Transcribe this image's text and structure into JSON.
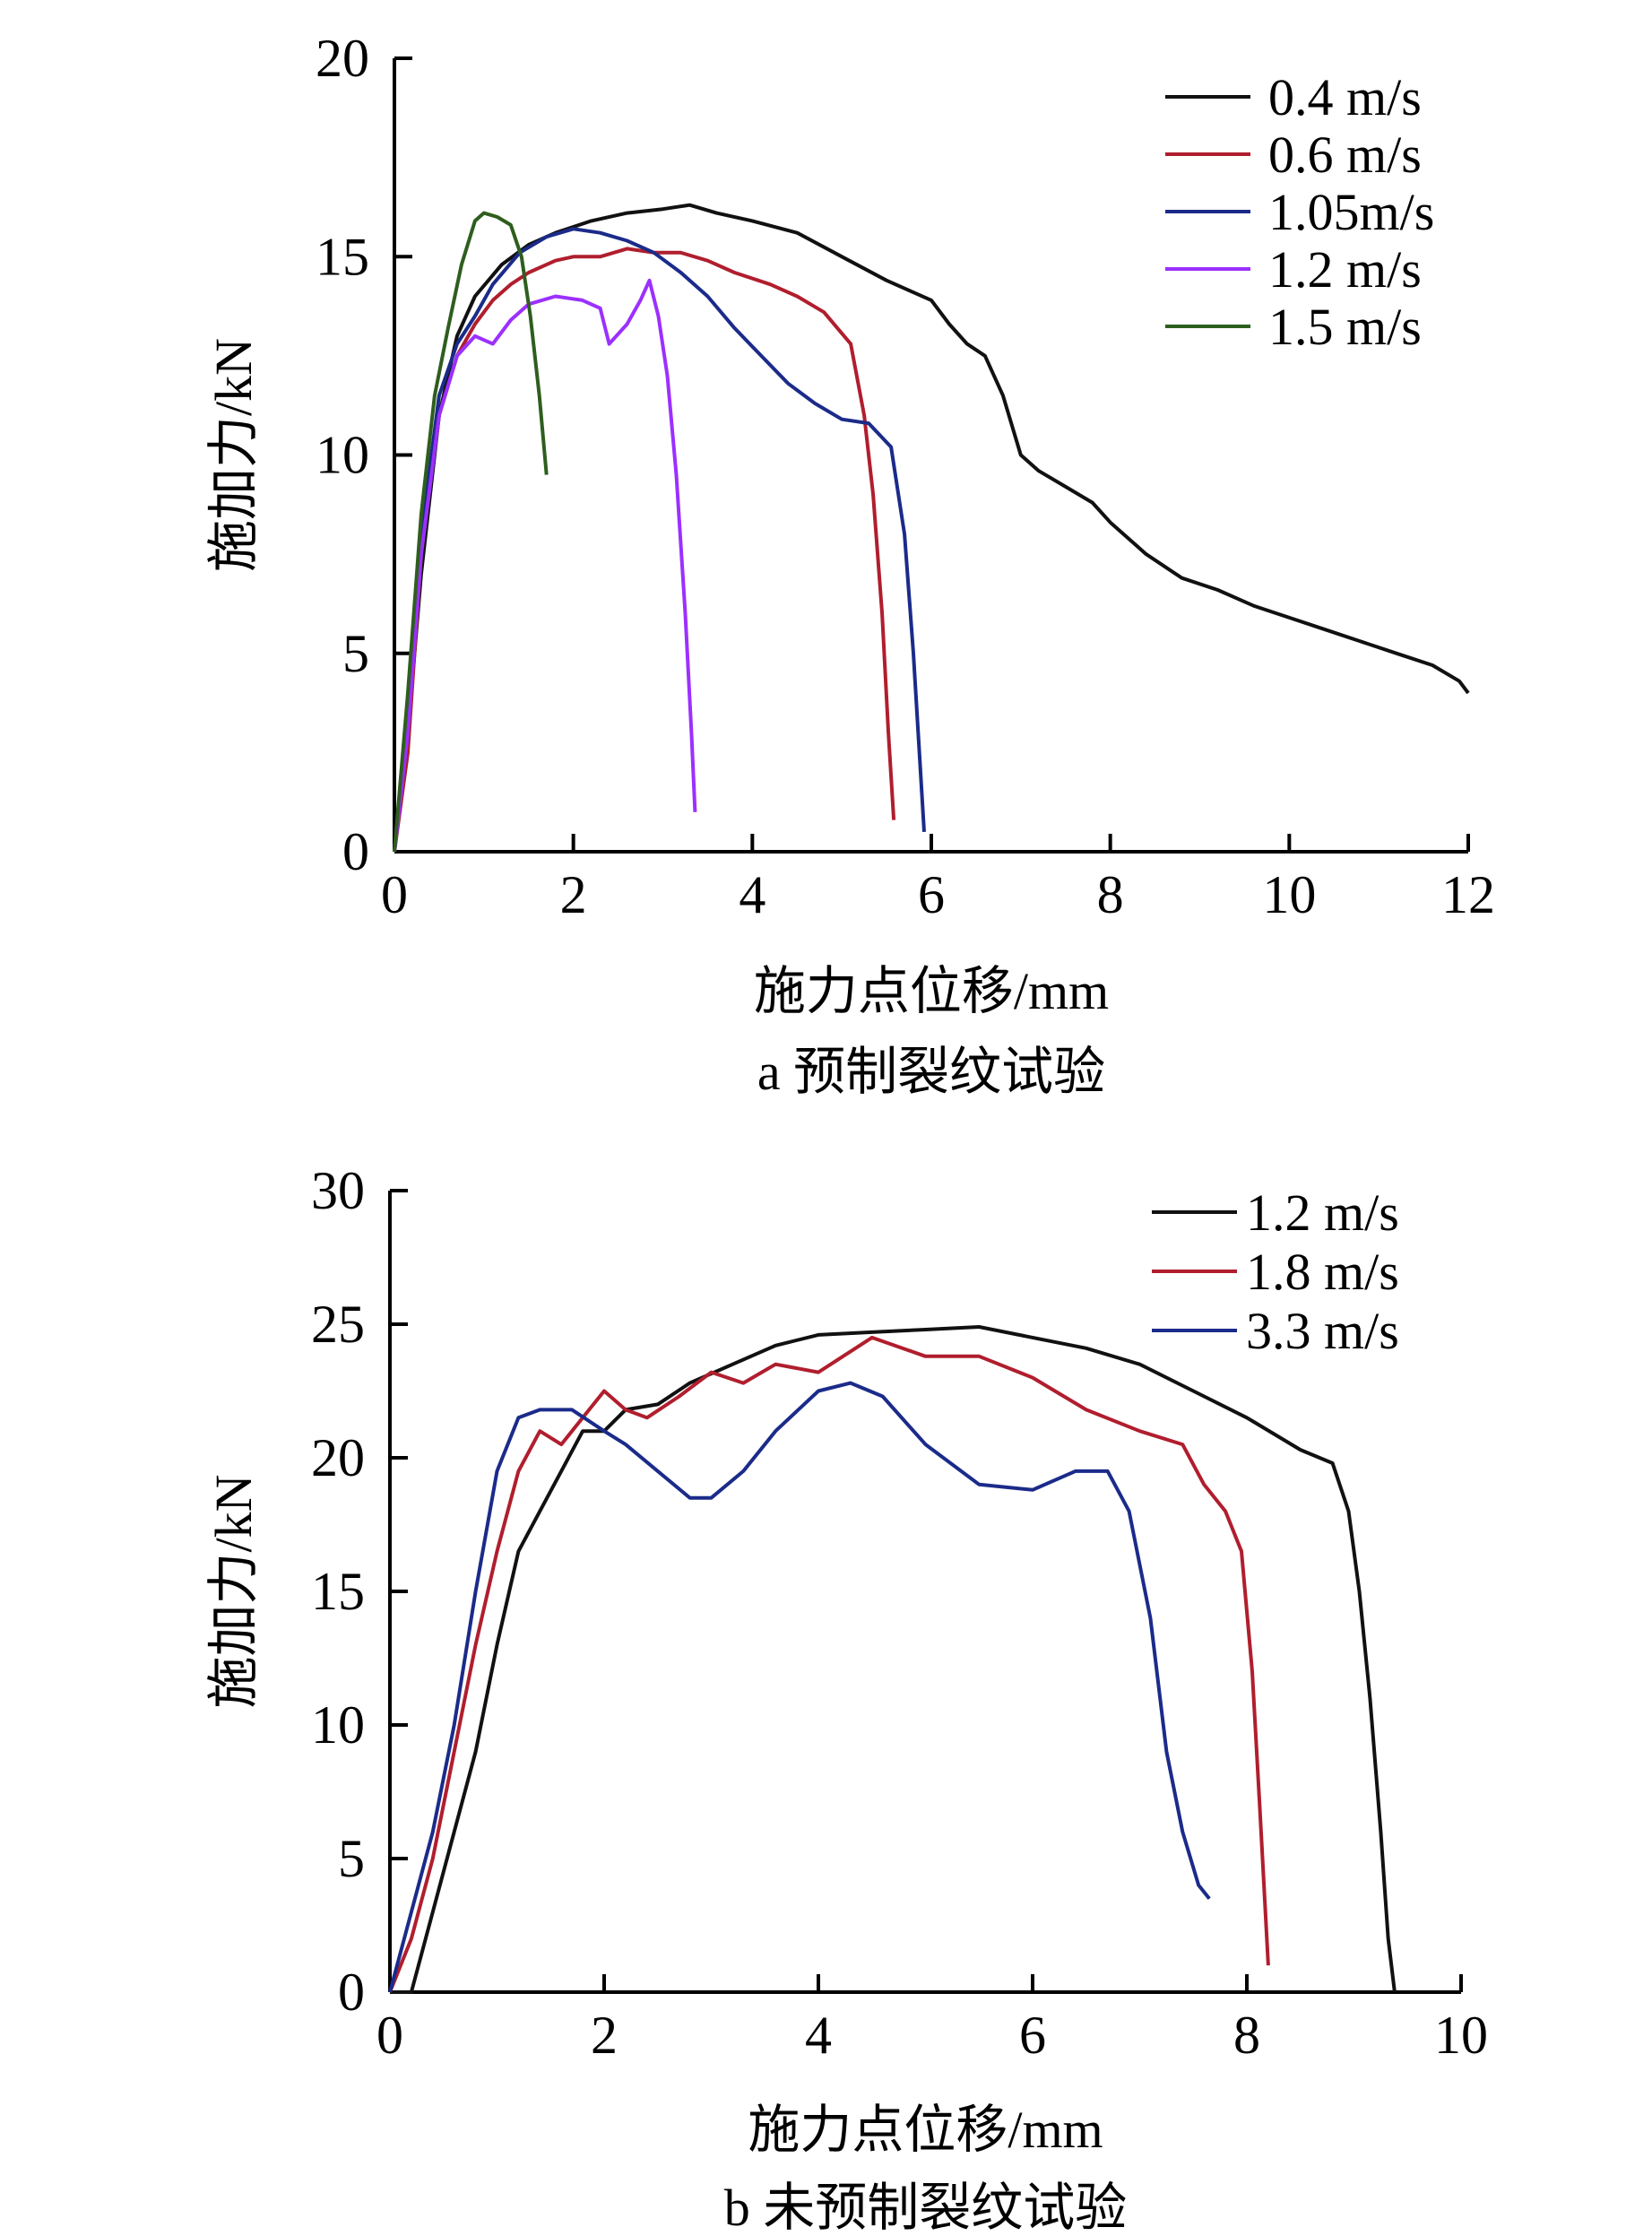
{
  "chart_data": [
    {
      "type": "line",
      "xlabel": "施力点位移/mm",
      "ylabel": "施加力/kN",
      "caption": "a  预制裂纹试验",
      "xlim": [
        0,
        12
      ],
      "ylim": [
        0,
        20
      ],
      "x_ticks": [
        "0",
        "2",
        "4",
        "6",
        "8",
        "10",
        "12"
      ],
      "y_ticks": [
        "0",
        "5",
        "10",
        "15",
        "20"
      ],
      "legend_position": "top-right",
      "series": [
        {
          "name": "0.4 m/s",
          "color": "#111111",
          "points": [
            [
              0,
              0
            ],
            [
              0.15,
              3
            ],
            [
              0.3,
              7
            ],
            [
              0.5,
              11
            ],
            [
              0.7,
              13
            ],
            [
              0.9,
              14
            ],
            [
              1.2,
              14.8
            ],
            [
              1.5,
              15.3
            ],
            [
              1.8,
              15.6
            ],
            [
              2.2,
              15.9
            ],
            [
              2.6,
              16.1
            ],
            [
              3.0,
              16.2
            ],
            [
              3.3,
              16.3
            ],
            [
              3.6,
              16.1
            ],
            [
              4.0,
              15.9
            ],
            [
              4.5,
              15.6
            ],
            [
              5.0,
              15.0
            ],
            [
              5.5,
              14.4
            ],
            [
              5.8,
              14.1
            ],
            [
              6.0,
              13.9
            ],
            [
              6.2,
              13.3
            ],
            [
              6.4,
              12.8
            ],
            [
              6.6,
              12.5
            ],
            [
              6.8,
              11.5
            ],
            [
              7.0,
              10.0
            ],
            [
              7.2,
              9.6
            ],
            [
              7.5,
              9.2
            ],
            [
              7.8,
              8.8
            ],
            [
              8.0,
              8.3
            ],
            [
              8.4,
              7.5
            ],
            [
              8.8,
              6.9
            ],
            [
              9.2,
              6.6
            ],
            [
              9.6,
              6.2
            ],
            [
              10.0,
              5.9
            ],
            [
              10.4,
              5.6
            ],
            [
              10.8,
              5.3
            ],
            [
              11.2,
              5.0
            ],
            [
              11.6,
              4.7
            ],
            [
              11.9,
              4.3
            ],
            [
              12.0,
              4.0
            ]
          ]
        },
        {
          "name": "0.6 m/s",
          "color": "#b01e2e",
          "points": [
            [
              0,
              0
            ],
            [
              0.15,
              2.5
            ],
            [
              0.3,
              7.5
            ],
            [
              0.5,
              11
            ],
            [
              0.7,
              12.5
            ],
            [
              0.9,
              13.3
            ],
            [
              1.1,
              13.9
            ],
            [
              1.3,
              14.3
            ],
            [
              1.5,
              14.6
            ],
            [
              1.8,
              14.9
            ],
            [
              2.0,
              15.0
            ],
            [
              2.3,
              15.0
            ],
            [
              2.6,
              15.2
            ],
            [
              2.9,
              15.1
            ],
            [
              3.2,
              15.1
            ],
            [
              3.5,
              14.9
            ],
            [
              3.8,
              14.6
            ],
            [
              4.2,
              14.3
            ],
            [
              4.5,
              14.0
            ],
            [
              4.8,
              13.6
            ],
            [
              5.1,
              12.8
            ],
            [
              5.25,
              11.0
            ],
            [
              5.35,
              9.0
            ],
            [
              5.45,
              6.0
            ],
            [
              5.52,
              3.0
            ],
            [
              5.58,
              0.8
            ]
          ]
        },
        {
          "name": "1.05m/s",
          "color": "#1b2b8a",
          "points": [
            [
              0,
              0
            ],
            [
              0.15,
              3
            ],
            [
              0.3,
              8
            ],
            [
              0.5,
              11.5
            ],
            [
              0.7,
              12.8
            ],
            [
              0.9,
              13.5
            ],
            [
              1.1,
              14.3
            ],
            [
              1.4,
              15.1
            ],
            [
              1.7,
              15.5
            ],
            [
              2.0,
              15.7
            ],
            [
              2.3,
              15.6
            ],
            [
              2.6,
              15.4
            ],
            [
              2.9,
              15.1
            ],
            [
              3.2,
              14.6
            ],
            [
              3.5,
              14.0
            ],
            [
              3.8,
              13.2
            ],
            [
              4.1,
              12.5
            ],
            [
              4.4,
              11.8
            ],
            [
              4.7,
              11.3
            ],
            [
              5.0,
              10.9
            ],
            [
              5.3,
              10.8
            ],
            [
              5.55,
              10.2
            ],
            [
              5.7,
              8.0
            ],
            [
              5.8,
              5.0
            ],
            [
              5.88,
              2.0
            ],
            [
              5.92,
              0.5
            ]
          ]
        },
        {
          "name": "1.2 m/s",
          "color": "#9b30ff",
          "points": [
            [
              0,
              0
            ],
            [
              0.15,
              3
            ],
            [
              0.3,
              7.5
            ],
            [
              0.5,
              11
            ],
            [
              0.7,
              12.5
            ],
            [
              0.9,
              13.0
            ],
            [
              1.1,
              12.8
            ],
            [
              1.3,
              13.4
            ],
            [
              1.5,
              13.8
            ],
            [
              1.8,
              14.0
            ],
            [
              2.1,
              13.9
            ],
            [
              2.3,
              13.7
            ],
            [
              2.4,
              12.8
            ],
            [
              2.6,
              13.3
            ],
            [
              2.75,
              13.9
            ],
            [
              2.85,
              14.4
            ],
            [
              2.95,
              13.5
            ],
            [
              3.05,
              12.0
            ],
            [
              3.15,
              9.5
            ],
            [
              3.25,
              6.0
            ],
            [
              3.32,
              3.0
            ],
            [
              3.36,
              1.0
            ]
          ]
        },
        {
          "name": "1.5 m/s",
          "color": "#2e5e1e",
          "points": [
            [
              0,
              0
            ],
            [
              0.15,
              4
            ],
            [
              0.3,
              8.5
            ],
            [
              0.45,
              11.5
            ],
            [
              0.6,
              13.2
            ],
            [
              0.75,
              14.8
            ],
            [
              0.9,
              15.9
            ],
            [
              1.0,
              16.1
            ],
            [
              1.15,
              16.0
            ],
            [
              1.3,
              15.8
            ],
            [
              1.42,
              15.0
            ],
            [
              1.52,
              13.5
            ],
            [
              1.62,
              11.5
            ],
            [
              1.7,
              9.5
            ]
          ]
        }
      ]
    },
    {
      "type": "line",
      "xlabel": "施力点位移/mm",
      "ylabel": "施加力/kN",
      "caption": "b  未预制裂纹试验",
      "xlim": [
        0,
        10
      ],
      "ylim": [
        0,
        30
      ],
      "x_ticks": [
        "0",
        "2",
        "4",
        "6",
        "8",
        "10"
      ],
      "y_ticks": [
        "0",
        "5",
        "10",
        "15",
        "20",
        "25",
        "30"
      ],
      "legend_position": "top-right",
      "series": [
        {
          "name": "1.2 m/s",
          "color": "#111111",
          "points": [
            [
              0,
              0
            ],
            [
              0.2,
              0
            ],
            [
              0.4,
              3
            ],
            [
              0.6,
              6
            ],
            [
              0.8,
              9
            ],
            [
              1.0,
              13
            ],
            [
              1.2,
              16.5
            ],
            [
              1.4,
              18.0
            ],
            [
              1.6,
              19.5
            ],
            [
              1.8,
              21.0
            ],
            [
              2.0,
              21.0
            ],
            [
              2.2,
              21.8
            ],
            [
              2.5,
              22.0
            ],
            [
              2.8,
              22.8
            ],
            [
              3.2,
              23.5
            ],
            [
              3.6,
              24.2
            ],
            [
              4.0,
              24.6
            ],
            [
              4.5,
              24.7
            ],
            [
              5.0,
              24.8
            ],
            [
              5.5,
              24.9
            ],
            [
              6.0,
              24.5
            ],
            [
              6.5,
              24.1
            ],
            [
              7.0,
              23.5
            ],
            [
              7.5,
              22.5
            ],
            [
              8.0,
              21.5
            ],
            [
              8.5,
              20.3
            ],
            [
              8.8,
              19.8
            ],
            [
              8.95,
              18.0
            ],
            [
              9.05,
              15.0
            ],
            [
              9.15,
              11.0
            ],
            [
              9.25,
              6.0
            ],
            [
              9.32,
              2.0
            ],
            [
              9.38,
              0
            ]
          ]
        },
        {
          "name": "1.8 m/s",
          "color": "#b01e2e",
          "points": [
            [
              0,
              0
            ],
            [
              0.2,
              2
            ],
            [
              0.4,
              5
            ],
            [
              0.6,
              9
            ],
            [
              0.8,
              13
            ],
            [
              1.0,
              16.5
            ],
            [
              1.2,
              19.5
            ],
            [
              1.4,
              21.0
            ],
            [
              1.6,
              20.5
            ],
            [
              1.8,
              21.5
            ],
            [
              2.0,
              22.5
            ],
            [
              2.2,
              21.8
            ],
            [
              2.4,
              21.5
            ],
            [
              2.7,
              22.3
            ],
            [
              3.0,
              23.2
            ],
            [
              3.3,
              22.8
            ],
            [
              3.6,
              23.5
            ],
            [
              4.0,
              23.2
            ],
            [
              4.5,
              24.5
            ],
            [
              5.0,
              23.8
            ],
            [
              5.5,
              23.8
            ],
            [
              6.0,
              23.0
            ],
            [
              6.5,
              21.8
            ],
            [
              7.0,
              21.0
            ],
            [
              7.4,
              20.5
            ],
            [
              7.6,
              19.0
            ],
            [
              7.8,
              18.0
            ],
            [
              7.95,
              16.5
            ],
            [
              8.05,
              12.0
            ],
            [
              8.12,
              7.0
            ],
            [
              8.18,
              2.5
            ],
            [
              8.2,
              1.0
            ]
          ]
        },
        {
          "name": "3.3 m/s",
          "color": "#1b2b8a",
          "points": [
            [
              0,
              0
            ],
            [
              0.2,
              3
            ],
            [
              0.4,
              6
            ],
            [
              0.6,
              10
            ],
            [
              0.8,
              15
            ],
            [
              1.0,
              19.5
            ],
            [
              1.2,
              21.5
            ],
            [
              1.4,
              21.8
            ],
            [
              1.7,
              21.8
            ],
            [
              2.0,
              21.0
            ],
            [
              2.2,
              20.5
            ],
            [
              2.5,
              19.5
            ],
            [
              2.8,
              18.5
            ],
            [
              3.0,
              18.5
            ],
            [
              3.3,
              19.5
            ],
            [
              3.6,
              21.0
            ],
            [
              4.0,
              22.5
            ],
            [
              4.3,
              22.8
            ],
            [
              4.6,
              22.3
            ],
            [
              5.0,
              20.5
            ],
            [
              5.5,
              19.0
            ],
            [
              6.0,
              18.8
            ],
            [
              6.4,
              19.5
            ],
            [
              6.7,
              19.5
            ],
            [
              6.9,
              18.0
            ],
            [
              7.1,
              14.0
            ],
            [
              7.25,
              9.0
            ],
            [
              7.4,
              6.0
            ],
            [
              7.55,
              4.0
            ],
            [
              7.65,
              3.5
            ]
          ]
        }
      ]
    }
  ]
}
